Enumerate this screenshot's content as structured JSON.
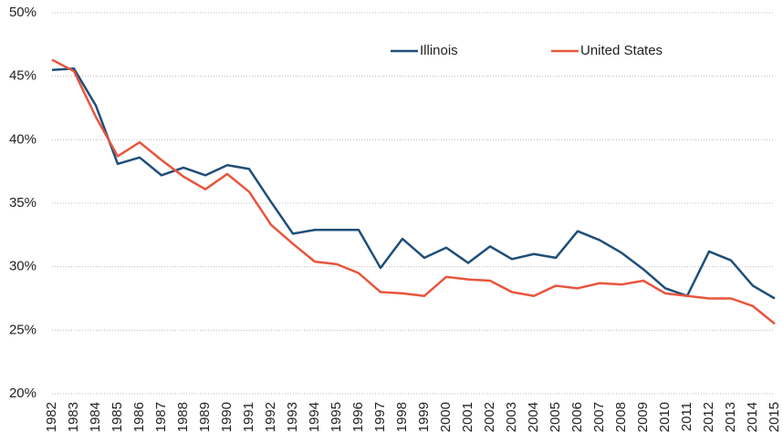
{
  "chart_data": {
    "type": "line",
    "categories": [
      "1982",
      "1983",
      "1984",
      "1985",
      "1986",
      "1987",
      "1988",
      "1989",
      "1990",
      "1991",
      "1992",
      "1993",
      "1994",
      "1995",
      "1996",
      "1997",
      "1998",
      "1999",
      "2000",
      "2001",
      "2002",
      "2003",
      "2004",
      "2005",
      "2006",
      "2007",
      "2008",
      "2009",
      "2010",
      "2011",
      "2012",
      "2013",
      "2014",
      "2015"
    ],
    "series": [
      {
        "name": "Illinois",
        "color": "#1f4e79",
        "values": [
          45.5,
          45.6,
          42.7,
          38.1,
          38.6,
          37.2,
          37.8,
          37.2,
          38.0,
          37.7,
          35.1,
          32.6,
          32.9,
          32.9,
          32.9,
          29.9,
          32.2,
          30.7,
          31.5,
          30.3,
          31.6,
          30.6,
          31.0,
          30.7,
          32.8,
          32.1,
          31.1,
          29.8,
          28.3,
          27.7,
          31.2,
          30.5,
          28.5,
          27.5
        ]
      },
      {
        "name": "United States",
        "color": "#e8553d",
        "values": [
          46.3,
          45.4,
          41.8,
          38.7,
          39.8,
          38.4,
          37.1,
          36.1,
          37.3,
          35.9,
          33.3,
          31.8,
          30.4,
          30.2,
          29.5,
          28.0,
          27.9,
          27.7,
          29.2,
          29.0,
          28.9,
          28.0,
          27.7,
          28.5,
          28.3,
          28.7,
          28.6,
          28.9,
          27.9,
          27.7,
          27.5,
          27.5,
          26.9,
          25.5
        ]
      }
    ],
    "ylim": [
      20,
      50
    ],
    "yticks": [
      {
        "value": 20,
        "label": "20%"
      },
      {
        "value": 25,
        "label": "25%"
      },
      {
        "value": 30,
        "label": "30%"
      },
      {
        "value": 35,
        "label": "35%"
      },
      {
        "value": 40,
        "label": "40%"
      },
      {
        "value": 45,
        "label": "45%"
      },
      {
        "value": 50,
        "label": "50%"
      }
    ],
    "grid": true,
    "legend": "top"
  }
}
